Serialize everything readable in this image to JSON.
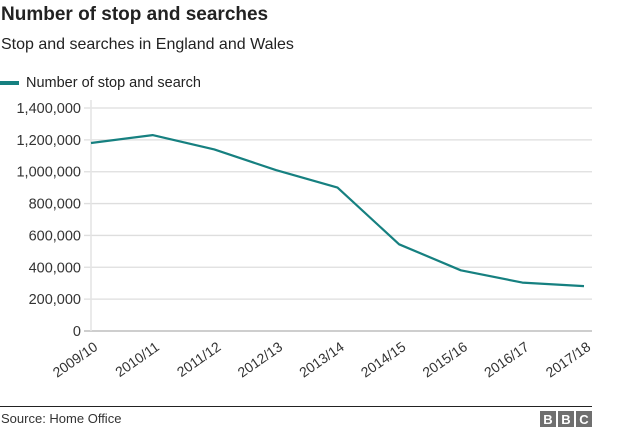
{
  "header": {
    "title": "Number of stop and searches",
    "subtitle": "Stop and searches in England and Wales"
  },
  "legend": {
    "items": [
      {
        "label": "Number of stop and search",
        "color": "#168080"
      }
    ]
  },
  "footer": {
    "source": "Source: Home Office",
    "logo_letters": [
      "B",
      "B",
      "C"
    ]
  },
  "colors": {
    "series": "#168080",
    "grid": "#dedede",
    "axis_text": "#333333"
  },
  "chart_data": {
    "type": "line",
    "title": "Number of stop and searches",
    "subtitle": "Stop and searches in England and Wales",
    "xlabel": "",
    "ylabel": "",
    "categories": [
      "2009/10",
      "2010/11",
      "2011/12",
      "2012/13",
      "2013/14",
      "2014/15",
      "2015/16",
      "2016/17",
      "2017/18"
    ],
    "series": [
      {
        "name": "Number of stop and search",
        "values": [
          1180000,
          1230000,
          1140000,
          1010000,
          900000,
          544000,
          381000,
          304000,
          282000
        ]
      }
    ],
    "ylim": [
      0,
      1400000
    ],
    "yticks": [
      0,
      200000,
      400000,
      600000,
      800000,
      1000000,
      1200000,
      1400000
    ],
    "ytick_labels": [
      "0",
      "200,000",
      "400,000",
      "600,000",
      "800,000",
      "1,000,000",
      "1,200,000",
      "1,400,000"
    ],
    "grid": true,
    "legend_position": "top-left",
    "source": "Source: Home Office"
  }
}
